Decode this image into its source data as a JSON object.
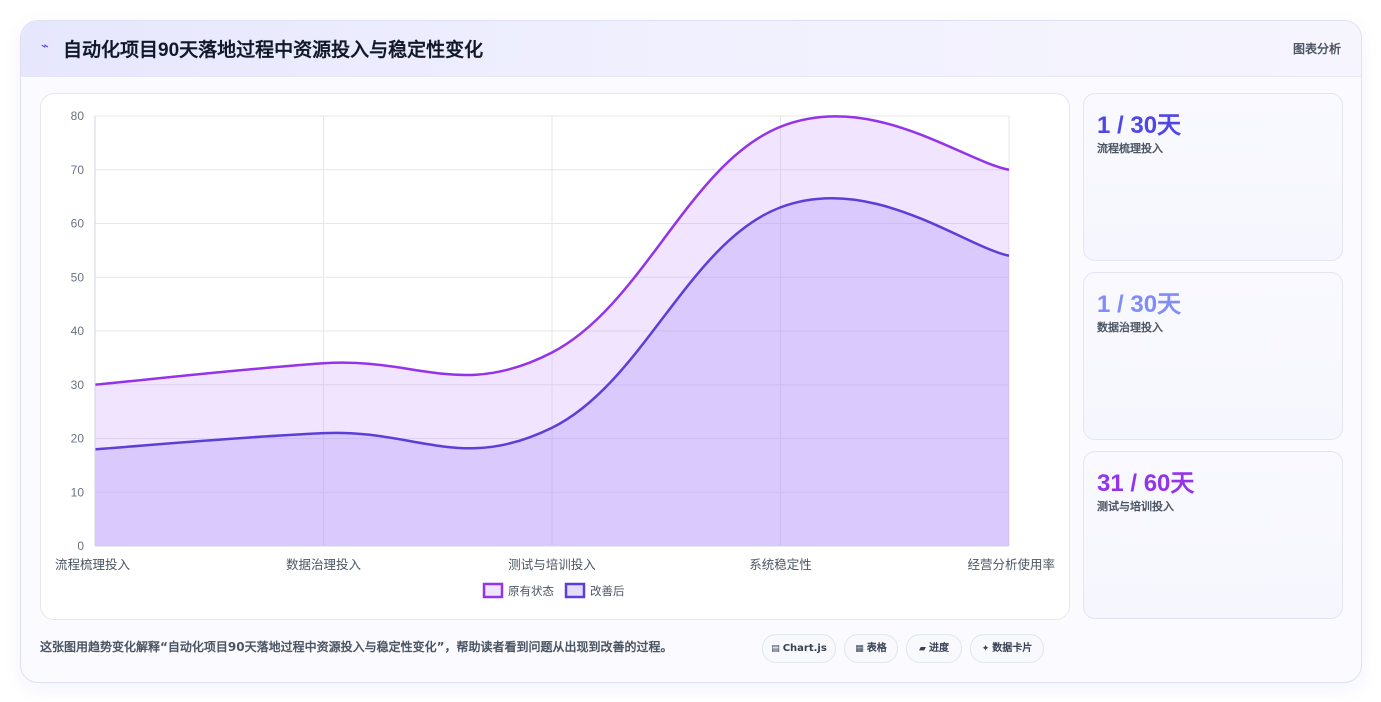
{
  "header": {
    "icon": "trend-icon",
    "title": "自动化项目90天落地过程中资源投入与稳定性变化",
    "tag": "图表分析"
  },
  "chart_data": {
    "type": "area",
    "categories": [
      "流程梳理投入",
      "数据治理投入",
      "测试与培训投入",
      "系统稳定性",
      "经营分析使用率"
    ],
    "series": [
      {
        "name": "原有状态",
        "values": [
          30,
          34,
          36,
          78,
          70
        ],
        "color": "#9333ea"
      },
      {
        "name": "改善后",
        "values": [
          18,
          21,
          22,
          63,
          54
        ],
        "color": "#5b3fd6"
      }
    ],
    "ylim": [
      0,
      80
    ],
    "yticks": [
      0,
      10,
      20,
      30,
      40,
      50,
      60,
      70,
      80
    ],
    "grid": true,
    "legend_position": "bottom",
    "title": "",
    "xlabel": "",
    "ylabel": ""
  },
  "stats": [
    {
      "value": "1 / 30天",
      "label": "流程梳理投入",
      "color": "#4f46e5"
    },
    {
      "value": "1 / 30天",
      "label": "数据治理投入",
      "color": "#818cf8"
    },
    {
      "value": "31 / 60天",
      "label": "测试与培训投入",
      "color": "#9333ea"
    }
  ],
  "footer": {
    "description": "这张图用趋势变化解释“自动化项目90天落地过程中资源投入与稳定性变化”，帮助读者看到问题从出现到改善的过程。",
    "chips": [
      {
        "icon": "chart-icon",
        "glyph": "▤",
        "label": "Chart.js"
      },
      {
        "icon": "table-icon",
        "glyph": "▦",
        "label": "表格"
      },
      {
        "icon": "progress-icon",
        "glyph": "▰",
        "label": "进度"
      },
      {
        "icon": "sparkle-icon",
        "glyph": "✦",
        "label": "数据卡片"
      }
    ]
  }
}
